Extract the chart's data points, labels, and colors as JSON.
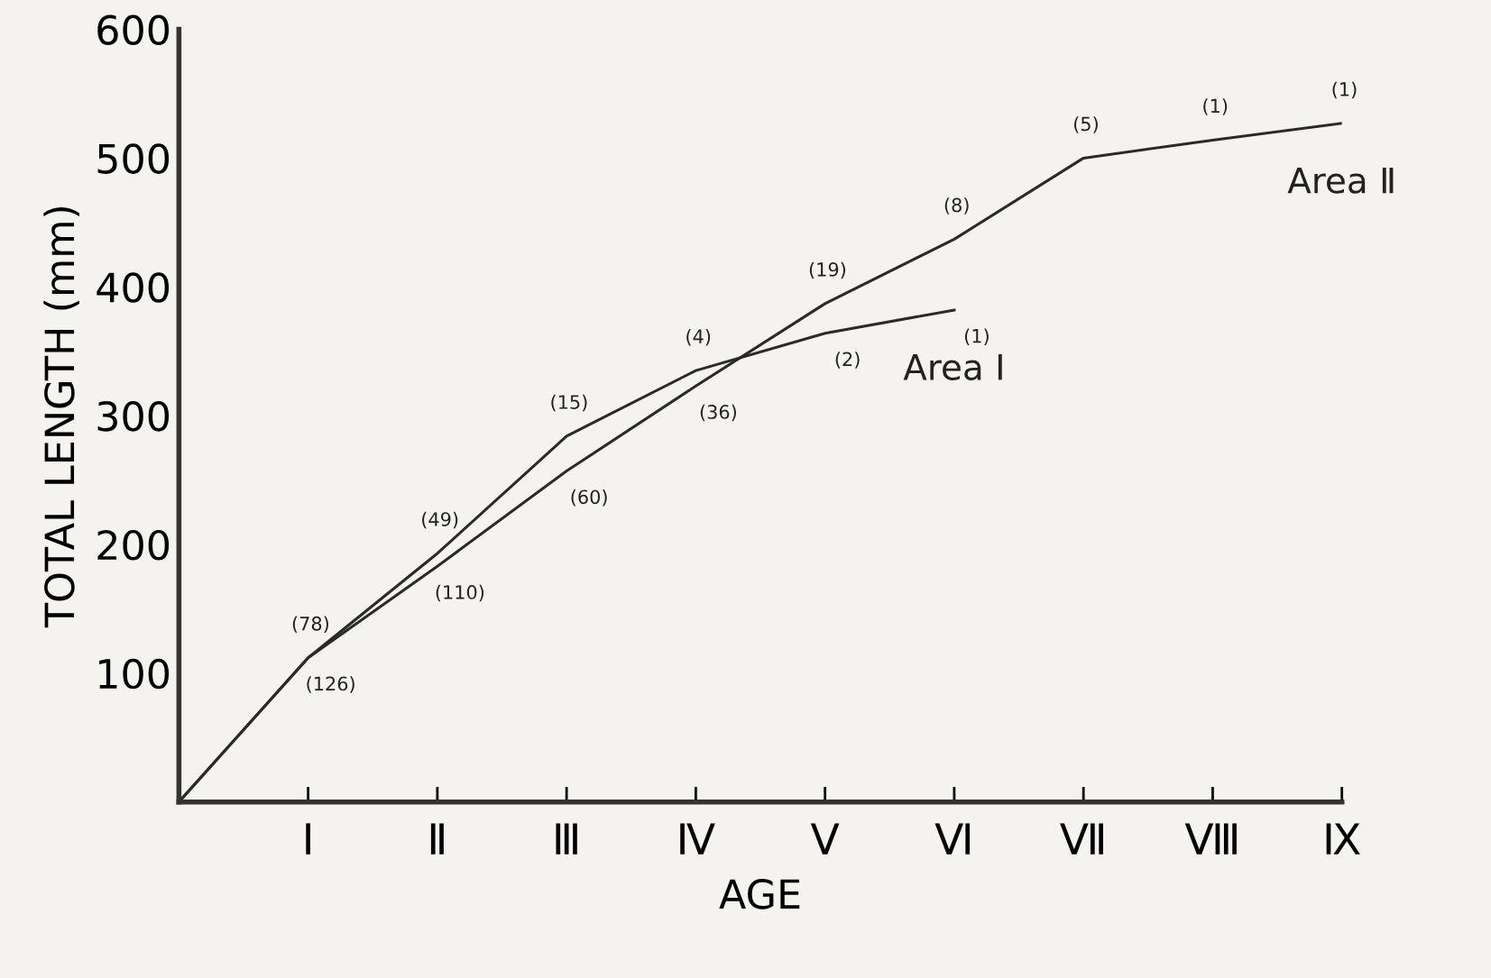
{
  "chart_data": {
    "type": "line",
    "xlabel": "AGE",
    "ylabel": "TOTAL LENGTH (mm)",
    "categories": [
      null,
      "Ⅰ",
      "Ⅱ",
      "Ⅲ",
      "Ⅳ",
      "Ⅴ",
      "Ⅵ",
      "Ⅶ",
      "Ⅷ",
      "Ⅸ"
    ],
    "ylim": [
      0,
      600
    ],
    "yticks": [
      100,
      200,
      300,
      400,
      500,
      600
    ],
    "grid": false,
    "legend": false,
    "marker": "none",
    "line_style": "solid",
    "series": [
      {
        "name": "Area Ⅰ",
        "color": "#2a2a2a",
        "values": [
          0,
          112,
          193,
          284,
          335,
          364,
          382,
          null,
          null,
          null
        ]
      },
      {
        "name": "Area Ⅱ",
        "color": "#2a2a2a",
        "values": [
          0,
          112,
          183,
          257,
          323,
          387,
          437,
          500,
          514,
          527
        ]
      }
    ],
    "annotations": [
      {
        "text": "(78)",
        "x": "Ⅰ",
        "y": 112
      },
      {
        "text": "(126)",
        "x": "Ⅰ",
        "y": 112
      },
      {
        "text": "(49)",
        "x": "Ⅱ",
        "y": 193
      },
      {
        "text": "(110)",
        "x": "Ⅱ",
        "y": 183
      },
      {
        "text": "(15)",
        "x": "Ⅲ",
        "y": 284
      },
      {
        "text": "(60)",
        "x": "Ⅲ",
        "y": 257
      },
      {
        "text": "(4)",
        "x": "Ⅳ",
        "y": 335
      },
      {
        "text": "(36)",
        "x": "Ⅳ",
        "y": 323
      },
      {
        "text": "(19)",
        "x": "Ⅴ",
        "y": 387
      },
      {
        "text": "(2)",
        "x": "Ⅴ",
        "y": 364
      },
      {
        "text": "(1)",
        "x": "Ⅵ",
        "y": 382
      },
      {
        "text": "(8)",
        "x": "Ⅵ",
        "y": 437
      },
      {
        "text": "(5)",
        "x": "Ⅶ",
        "y": 500
      },
      {
        "text": "(1)",
        "x": "Ⅷ",
        "y": 514
      },
      {
        "text": "(1)",
        "x": "Ⅸ",
        "y": 527
      }
    ]
  }
}
